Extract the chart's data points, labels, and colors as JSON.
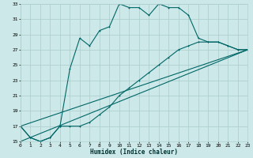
{
  "xlabel": "Humidex (Indice chaleur)",
  "bg_color": "#cce8e8",
  "grid_color": "#b0d0d0",
  "line_color": "#006666",
  "xlim": [
    0,
    23
  ],
  "ylim": [
    15,
    33
  ],
  "xticks": [
    0,
    1,
    2,
    3,
    4,
    5,
    6,
    7,
    8,
    9,
    10,
    11,
    12,
    13,
    14,
    15,
    16,
    17,
    18,
    19,
    20,
    21,
    22,
    23
  ],
  "yticks": [
    15,
    17,
    19,
    21,
    23,
    25,
    27,
    29,
    31,
    33
  ],
  "curve1_x": [
    0,
    1,
    2,
    3,
    4,
    5,
    6,
    7,
    8,
    9,
    10,
    11,
    12,
    13,
    14,
    15,
    16,
    17,
    18,
    19,
    20,
    21,
    22,
    23
  ],
  "curve1_y": [
    17,
    15.5,
    15,
    15.5,
    17,
    24.5,
    28.5,
    27.5,
    29.5,
    30,
    33,
    32.5,
    32.5,
    31.5,
    33,
    32.5,
    32.5,
    31.5,
    28.5,
    28,
    28,
    27.5,
    27,
    27
  ],
  "curve2_x": [
    0,
    1,
    2,
    3,
    4,
    5,
    6,
    7,
    8,
    9,
    10,
    11,
    12,
    13,
    14,
    15,
    16,
    17,
    18,
    19,
    20,
    21,
    22,
    23
  ],
  "curve2_y": [
    17,
    15.5,
    15,
    15.5,
    17,
    17,
    17,
    17.5,
    18.5,
    19.5,
    21,
    22,
    23,
    24,
    25,
    26,
    27,
    27.5,
    28,
    28,
    28,
    27.5,
    27,
    27
  ],
  "curve3_x": [
    0,
    23
  ],
  "curve3_y": [
    15,
    27
  ],
  "curve4_x": [
    0,
    23
  ],
  "curve4_y": [
    17,
    27
  ],
  "xlabel_fontsize": 5.5,
  "tick_fontsize": 4.5,
  "lw": 0.8,
  "ms": 2.0
}
